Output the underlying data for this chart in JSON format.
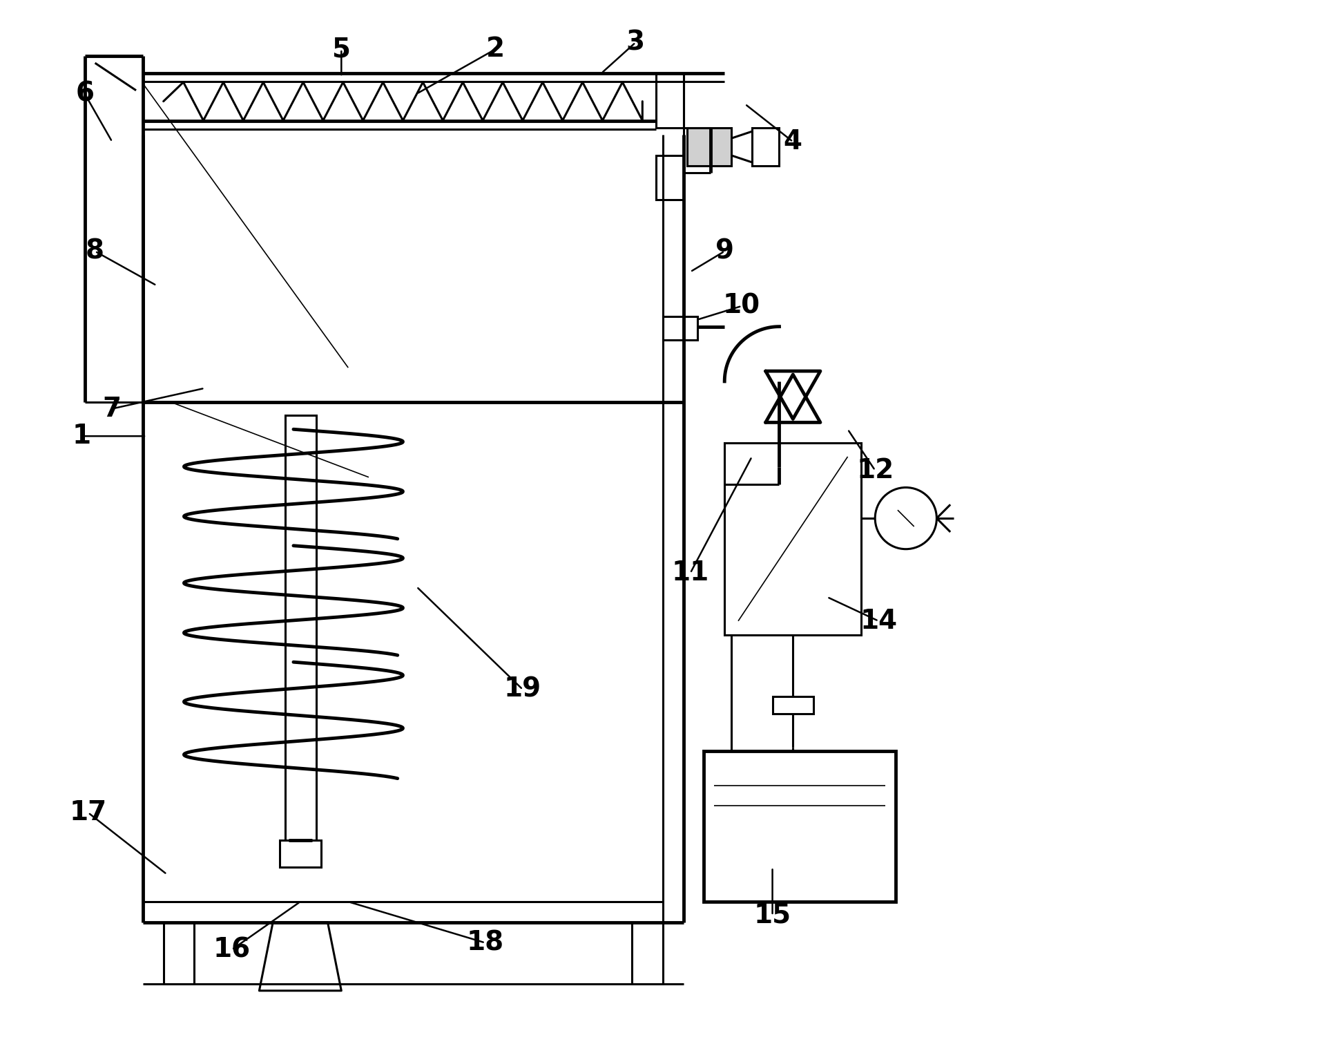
{
  "bg_color": "#ffffff",
  "line_color": "#000000",
  "lw_main": 2.2,
  "lw_thick": 3.5,
  "lw_thin": 1.2,
  "label_fontsize": 28,
  "figsize": [
    19.26,
    15.24
  ],
  "dpi": 100
}
